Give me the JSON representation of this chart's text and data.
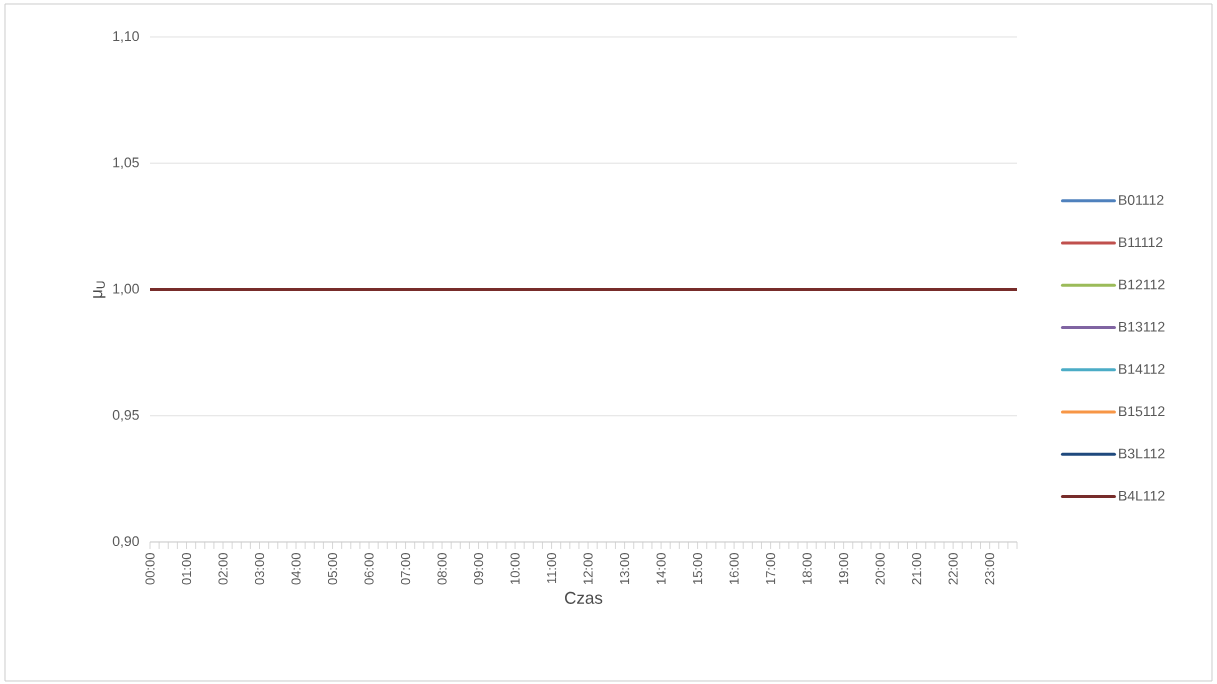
{
  "chart_data": {
    "type": "line",
    "xlabel": "Czas",
    "ylabel": "μ$_{U}$",
    "x": [
      0,
      23.75
    ],
    "series": [
      {
        "name": "B01112",
        "color": "#4f81bd",
        "values": [
          null,
          null
        ]
      },
      {
        "name": "B11112",
        "color": "#c0504d",
        "values": [
          null,
          null
        ]
      },
      {
        "name": "B12112",
        "color": "#9bbb59",
        "values": [
          null,
          null
        ]
      },
      {
        "name": "B13112",
        "color": "#8064a2",
        "values": [
          null,
          null
        ]
      },
      {
        "name": "B14112",
        "color": "#4bacc6",
        "values": [
          null,
          null
        ]
      },
      {
        "name": "B15112",
        "color": "#f79646",
        "values": [
          null,
          null
        ]
      },
      {
        "name": "B3L112",
        "color": "#1f497d",
        "values": [
          null,
          null
        ]
      },
      {
        "name": "B4L112",
        "color": "#772c2a",
        "values": [
          1.0,
          1.0
        ]
      }
    ],
    "xlim": [
      0,
      23.75
    ],
    "xticks": [
      {
        "value": 0,
        "label": "00:00"
      },
      {
        "value": 0.25,
        "label": null
      },
      {
        "value": 0.5,
        "label": null
      },
      {
        "value": 0.75,
        "label": null
      },
      {
        "value": 1,
        "label": "01:00"
      },
      {
        "value": 1.25,
        "label": null
      },
      {
        "value": 1.5,
        "label": null
      },
      {
        "value": 1.75,
        "label": null
      },
      {
        "value": 2,
        "label": "02:00"
      },
      {
        "value": 2.25,
        "label": null
      },
      {
        "value": 2.5,
        "label": null
      },
      {
        "value": 2.75,
        "label": null
      },
      {
        "value": 3,
        "label": "03:00"
      },
      {
        "value": 3.25,
        "label": null
      },
      {
        "value": 3.5,
        "label": null
      },
      {
        "value": 3.75,
        "label": null
      },
      {
        "value": 4,
        "label": "04:00"
      },
      {
        "value": 4.25,
        "label": null
      },
      {
        "value": 4.5,
        "label": null
      },
      {
        "value": 4.75,
        "label": null
      },
      {
        "value": 5,
        "label": "05:00"
      },
      {
        "value": 5.25,
        "label": null
      },
      {
        "value": 5.5,
        "label": null
      },
      {
        "value": 5.75,
        "label": null
      },
      {
        "value": 6,
        "label": "06:00"
      },
      {
        "value": 6.25,
        "label": null
      },
      {
        "value": 6.5,
        "label": null
      },
      {
        "value": 6.75,
        "label": null
      },
      {
        "value": 7,
        "label": "07:00"
      },
      {
        "value": 7.25,
        "label": null
      },
      {
        "value": 7.5,
        "label": null
      },
      {
        "value": 7.75,
        "label": null
      },
      {
        "value": 8,
        "label": "08:00"
      },
      {
        "value": 8.25,
        "label": null
      },
      {
        "value": 8.5,
        "label": null
      },
      {
        "value": 8.75,
        "label": null
      },
      {
        "value": 9,
        "label": "09:00"
      },
      {
        "value": 9.25,
        "label": null
      },
      {
        "value": 9.5,
        "label": null
      },
      {
        "value": 9.75,
        "label": null
      },
      {
        "value": 10,
        "label": "10:00"
      },
      {
        "value": 10.25,
        "label": null
      },
      {
        "value": 10.5,
        "label": null
      },
      {
        "value": 10.75,
        "label": null
      },
      {
        "value": 11,
        "label": "11:00"
      },
      {
        "value": 11.25,
        "label": null
      },
      {
        "value": 11.5,
        "label": null
      },
      {
        "value": 11.75,
        "label": null
      },
      {
        "value": 12,
        "label": "12:00"
      },
      {
        "value": 12.25,
        "label": null
      },
      {
        "value": 12.5,
        "label": null
      },
      {
        "value": 12.75,
        "label": null
      },
      {
        "value": 13,
        "label": "13:00"
      },
      {
        "value": 13.25,
        "label": null
      },
      {
        "value": 13.5,
        "label": null
      },
      {
        "value": 13.75,
        "label": null
      },
      {
        "value": 14,
        "label": "14:00"
      },
      {
        "value": 14.25,
        "label": null
      },
      {
        "value": 14.5,
        "label": null
      },
      {
        "value": 14.75,
        "label": null
      },
      {
        "value": 15,
        "label": "15:00"
      },
      {
        "value": 15.25,
        "label": null
      },
      {
        "value": 15.5,
        "label": null
      },
      {
        "value": 15.75,
        "label": null
      },
      {
        "value": 16,
        "label": "16:00"
      },
      {
        "value": 16.25,
        "label": null
      },
      {
        "value": 16.5,
        "label": null
      },
      {
        "value": 16.75,
        "label": null
      },
      {
        "value": 17,
        "label": "17:00"
      },
      {
        "value": 17.25,
        "label": null
      },
      {
        "value": 17.5,
        "label": null
      },
      {
        "value": 17.75,
        "label": null
      },
      {
        "value": 18,
        "label": "18:00"
      },
      {
        "value": 18.25,
        "label": null
      },
      {
        "value": 18.5,
        "label": null
      },
      {
        "value": 18.75,
        "label": null
      },
      {
        "value": 19,
        "label": "19:00"
      },
      {
        "value": 19.25,
        "label": null
      },
      {
        "value": 19.5,
        "label": null
      },
      {
        "value": 19.75,
        "label": null
      },
      {
        "value": 20,
        "label": "20:00"
      },
      {
        "value": 20.25,
        "label": null
      },
      {
        "value": 20.5,
        "label": null
      },
      {
        "value": 20.75,
        "label": null
      },
      {
        "value": 21,
        "label": "21:00"
      },
      {
        "value": 21.25,
        "label": null
      },
      {
        "value": 21.5,
        "label": null
      },
      {
        "value": 21.75,
        "label": null
      },
      {
        "value": 22,
        "label": "22:00"
      },
      {
        "value": 22.25,
        "label": null
      },
      {
        "value": 22.5,
        "label": null
      },
      {
        "value": 22.75,
        "label": null
      },
      {
        "value": 23,
        "label": "23:00"
      },
      {
        "value": 23.25,
        "label": null
      },
      {
        "value": 23.5,
        "label": null
      },
      {
        "value": 23.75,
        "label": null
      }
    ],
    "ylim": [
      0.9,
      1.1
    ],
    "yticks": [
      {
        "value": 0.9,
        "label": "0,90"
      },
      {
        "value": 0.95,
        "label": "0,95"
      },
      {
        "value": 1.0,
        "label": "1,00"
      },
      {
        "value": 1.05,
        "label": "1,05"
      },
      {
        "value": 1.1,
        "label": "1,10"
      }
    ],
    "grid": "y",
    "legend": "right"
  }
}
